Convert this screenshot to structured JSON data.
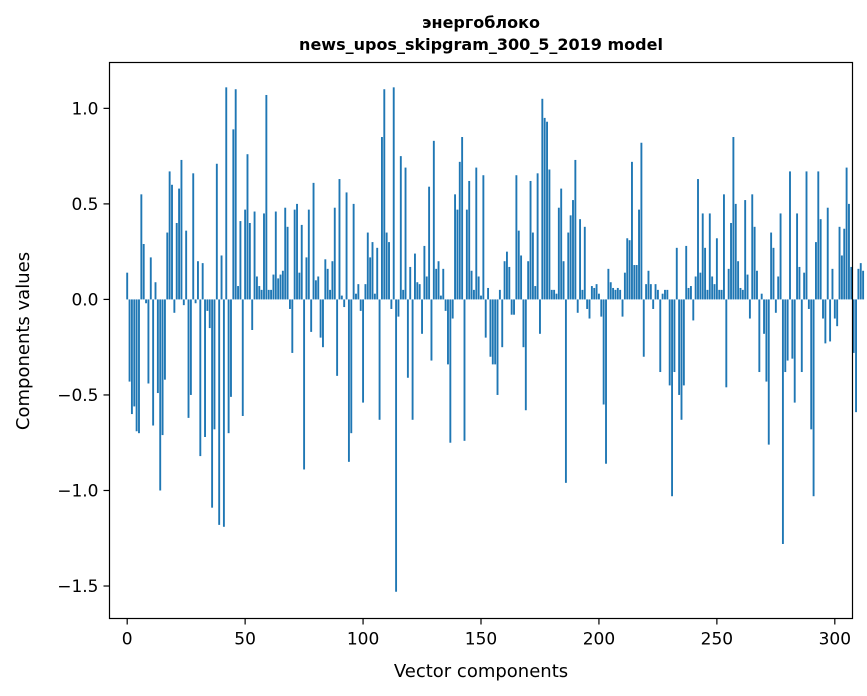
{
  "chart_data": {
    "type": "bar",
    "title": "энергоблоко",
    "subtitle": "news_upos_skipgram_300_5_2019 model",
    "xlabel": "Vector components",
    "ylabel": "Components values",
    "xlim": [
      -7.5,
      307.5
    ],
    "ylim": [
      -1.67,
      1.24
    ],
    "xticks": [
      0,
      50,
      100,
      150,
      200,
      250,
      300
    ],
    "xtick_labels": [
      "0",
      "50",
      "100",
      "150",
      "200",
      "250",
      "300"
    ],
    "yticks": [
      -1.5,
      -1.0,
      -0.5,
      0.0,
      0.5,
      1.0
    ],
    "ytick_labels": [
      "−1.5",
      "−1.0",
      "−0.5",
      "0.0",
      "0.5",
      "1.0"
    ],
    "bar_color": "#1f77b4",
    "grid": false,
    "legend": "none",
    "values": [
      0.14,
      -0.43,
      -0.6,
      -0.56,
      -0.69,
      -0.7,
      0.55,
      0.29,
      -0.02,
      -0.44,
      0.22,
      -0.66,
      0.09,
      -0.49,
      -1.0,
      -0.71,
      -0.42,
      0.35,
      0.67,
      0.6,
      -0.07,
      0.4,
      0.58,
      0.73,
      -0.03,
      0.36,
      -0.62,
      -0.5,
      0.66,
      -0.02,
      0.2,
      -0.82,
      0.19,
      -0.72,
      -0.06,
      -0.15,
      -1.09,
      -0.68,
      0.71,
      -1.18,
      0.23,
      -1.19,
      1.11,
      -0.7,
      -0.51,
      0.89,
      1.1,
      0.07,
      0.41,
      -0.61,
      0.47,
      0.76,
      0.4,
      -0.16,
      0.46,
      0.12,
      0.07,
      0.05,
      0.45,
      1.07,
      0.05,
      0.05,
      0.13,
      0.46,
      0.11,
      0.13,
      0.15,
      0.48,
      0.38,
      -0.05,
      -0.28,
      0.47,
      0.5,
      0.14,
      0.39,
      -0.89,
      0.22,
      0.47,
      -0.17,
      0.61,
      0.1,
      0.12,
      -0.2,
      -0.25,
      0.21,
      0.16,
      0.05,
      0.2,
      0.48,
      -0.4,
      0.63,
      0.02,
      -0.04,
      0.56,
      -0.85,
      -0.7,
      0.5,
      0.03,
      0.08,
      -0.06,
      -0.54,
      0.08,
      0.35,
      0.22,
      0.3,
      0.03,
      0.27,
      -0.63,
      0.85,
      1.1,
      0.35,
      0.3,
      -0.05,
      1.11,
      -1.53,
      -0.09,
      0.75,
      0.05,
      0.69,
      -0.41,
      0.17,
      -0.63,
      0.24,
      0.09,
      0.08,
      -0.18,
      0.28,
      0.12,
      0.59,
      -0.32,
      0.83,
      0.16,
      0.2,
      0.02,
      0.16,
      -0.06,
      -0.34,
      -0.75,
      -0.1,
      0.55,
      0.47,
      0.72,
      0.85,
      -0.74,
      0.47,
      0.62,
      0.15,
      0.05,
      0.69,
      0.12,
      0.02,
      0.65,
      -0.2,
      0.06,
      -0.3,
      -0.34,
      -0.34,
      -0.5,
      0.05,
      -0.25,
      0.2,
      0.25,
      0.17,
      -0.08,
      -0.08,
      0.65,
      0.36,
      0.23,
      -0.25,
      -0.58,
      0.2,
      0.62,
      0.35,
      0.07,
      0.66,
      -0.18,
      1.05,
      0.95,
      0.93,
      0.68,
      0.05,
      0.05,
      0.03,
      0.48,
      0.58,
      0.2,
      -0.96,
      0.35,
      0.44,
      0.52,
      0.73,
      -0.07,
      0.42,
      0.05,
      0.38,
      -0.05,
      -0.1,
      0.07,
      0.06,
      0.08,
      0.03,
      -0.09,
      -0.55,
      -0.86,
      0.16,
      0.09,
      0.06,
      0.05,
      0.06,
      0.05,
      -0.09,
      0.14,
      0.32,
      0.31,
      0.72,
      0.18,
      0.18,
      0.47,
      0.82,
      -0.3,
      0.08,
      0.15,
      0.08,
      -0.05,
      0.08,
      0.05,
      -0.38,
      0.03,
      0.05,
      0.05,
      -0.45,
      -1.03,
      -0.38,
      0.27,
      -0.5,
      -0.63,
      -0.45,
      0.28,
      0.06,
      0.07,
      -0.11,
      0.12,
      0.63,
      0.14,
      0.45,
      0.27,
      0.05,
      0.45,
      0.12,
      0.08,
      0.32,
      0.05,
      0.05,
      0.55,
      -0.46,
      0.16,
      0.4,
      0.85,
      0.5,
      0.2,
      0.06,
      0.05,
      0.52,
      0.13,
      -0.1,
      0.55,
      0.38,
      0.15,
      -0.38,
      0.03,
      -0.18,
      -0.43,
      -0.76,
      0.35,
      0.27,
      -0.07,
      0.12,
      0.45,
      -1.28,
      -0.38,
      -0.32,
      0.67,
      -0.31,
      -0.54,
      0.45,
      0.17,
      -0.38,
      0.14,
      0.67,
      -0.05,
      -0.68,
      -1.03,
      0.3,
      0.67,
      0.42,
      -0.1,
      -0.23,
      0.48,
      -0.22,
      0.16,
      -0.1,
      -0.14,
      0.38,
      0.23,
      0.37,
      0.69,
      0.5,
      0.17,
      -0.28,
      -0.59,
      0.16,
      0.19,
      0.15
    ]
  }
}
